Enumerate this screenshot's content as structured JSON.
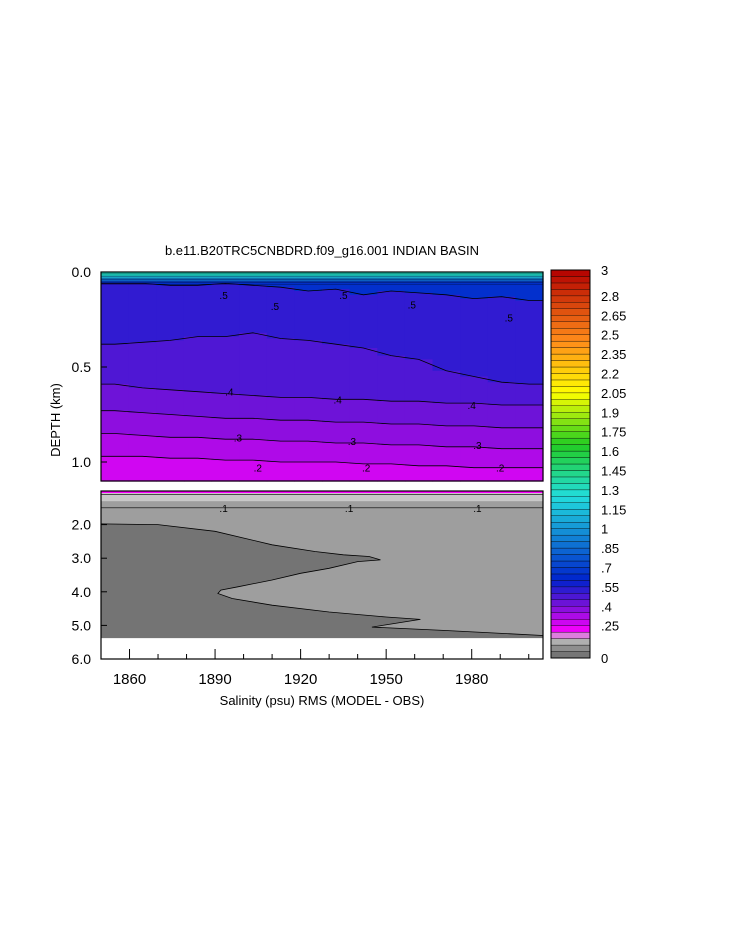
{
  "title": "b.e11.B20TRC5CNBDRD.f09_g16.001 INDIAN BASIN",
  "chart_data": {
    "type": "heatmap",
    "title": "b.e11.B20TRC5CNBDRD.f09_g16.001 INDIAN BASIN",
    "xlabel": "Salinity (psu) RMS (MODEL - OBS)",
    "ylabel": "DEPTH (km)",
    "xlim": [
      1850,
      2005
    ],
    "x_ticks": [
      1860,
      1890,
      1920,
      1950,
      1980
    ],
    "x_tick_labels": [
      "1860",
      "1890",
      "1920",
      "1950",
      "1980"
    ],
    "upper_panel": {
      "ylim": [
        0.0,
        1.1
      ],
      "y_ticks": [
        0.0,
        0.5,
        1.0
      ],
      "y_tick_labels": [
        "0.0",
        "0.5",
        "1.0"
      ]
    },
    "lower_panel": {
      "ylim": [
        1.0,
        6.0
      ],
      "y_ticks": [
        2.0,
        3.0,
        4.0,
        5.0,
        6.0
      ],
      "y_tick_labels": [
        "2.0",
        "3.0",
        "4.0",
        "5.0",
        "6.0"
      ]
    },
    "colorbar": {
      "min": 0,
      "max": 3,
      "step": 0.05,
      "tick_values": [
        3,
        2.8,
        2.65,
        2.5,
        2.35,
        2.2,
        2.05,
        1.9,
        1.75,
        1.6,
        1.45,
        1.3,
        1.15,
        1,
        0.85,
        0.7,
        0.55,
        0.4,
        0.25,
        0
      ],
      "tick_labels": [
        "3",
        "2.8",
        "2.65",
        "2.5",
        "2.35",
        "2.2",
        "2.05",
        "1.9",
        "1.75",
        "1.6",
        "1.45",
        "1.3",
        "1.15",
        "1",
        ".85",
        ".7",
        ".55",
        ".4",
        ".25",
        "0"
      ],
      "colors": {
        "high": "#b30000",
        "orange": "#ff8c1a",
        "yellow": "#ffff00",
        "green": "#22cc22",
        "cyan": "#22dddd",
        "blue": "#0022cc",
        "purple": "#7a11d9",
        "magenta": "#ff00ff",
        "light_gray": "#c8c8c8",
        "gray": "#909090",
        "dark_gray": "#6a6a6a"
      }
    },
    "contour_labels": [
      {
        "text": ".5",
        "x": 1893,
        "depth": 0.12
      },
      {
        "text": ".5",
        "x": 1911,
        "depth": 0.18
      },
      {
        "text": ".5",
        "x": 1935,
        "depth": 0.12
      },
      {
        "text": ".5",
        "x": 1959,
        "depth": 0.17
      },
      {
        "text": ".5",
        "x": 1993,
        "depth": 0.24
      },
      {
        "text": ".4",
        "x": 1895,
        "depth": 0.63
      },
      {
        "text": ".4",
        "x": 1933,
        "depth": 0.67
      },
      {
        "text": ".4",
        "x": 1980,
        "depth": 0.7
      },
      {
        "text": ".3",
        "x": 1898,
        "depth": 0.87
      },
      {
        "text": ".3",
        "x": 1938,
        "depth": 0.89
      },
      {
        "text": ".3",
        "x": 1982,
        "depth": 0.91
      },
      {
        "text": ".2",
        "x": 1905,
        "depth": 1.03
      },
      {
        "text": ".2",
        "x": 1943,
        "depth": 1.03
      },
      {
        "text": ".2",
        "x": 1990,
        "depth": 1.03
      },
      {
        "text": ".1",
        "x": 1893,
        "depth": 1.5
      },
      {
        "text": ".1",
        "x": 1937,
        "depth": 1.5
      },
      {
        "text": ".1",
        "x": 1982,
        "depth": 1.5
      }
    ],
    "upper_contours": [
      {
        "level": 0.5,
        "depth": [
          0.06,
          0.06,
          0.07,
          0.07,
          0.06,
          0.07,
          0.08,
          0.1,
          0.09,
          0.12,
          0.1,
          0.11,
          0.12,
          0.14,
          0.13,
          0.15
        ]
      },
      {
        "level": 0.45,
        "depth": [
          0.38,
          0.37,
          0.36,
          0.34,
          0.34,
          0.32,
          0.35,
          0.36,
          0.38,
          0.4,
          0.44,
          0.46,
          0.52,
          0.55,
          0.58,
          0.59
        ]
      },
      {
        "level": 0.4,
        "depth": [
          0.59,
          0.61,
          0.62,
          0.63,
          0.64,
          0.65,
          0.66,
          0.66,
          0.67,
          0.67,
          0.68,
          0.68,
          0.69,
          0.69,
          0.7,
          0.7
        ]
      },
      {
        "level": 0.35,
        "depth": [
          0.73,
          0.74,
          0.75,
          0.76,
          0.77,
          0.77,
          0.78,
          0.78,
          0.79,
          0.79,
          0.8,
          0.8,
          0.81,
          0.81,
          0.82,
          0.82
        ]
      },
      {
        "level": 0.3,
        "depth": [
          0.85,
          0.86,
          0.87,
          0.87,
          0.88,
          0.88,
          0.89,
          0.89,
          0.9,
          0.9,
          0.91,
          0.91,
          0.92,
          0.92,
          0.93,
          0.93
        ]
      },
      {
        "level": 0.25,
        "depth": [
          0.97,
          0.97,
          0.98,
          0.98,
          0.99,
          0.99,
          1.0,
          1.0,
          1.0,
          1.01,
          1.01,
          1.02,
          1.02,
          1.03,
          1.03,
          1.03
        ]
      }
    ],
    "lower_boundary_0_05": {
      "points": [
        [
          1850,
          1.98
        ],
        [
          1870,
          2.0
        ],
        [
          1890,
          2.2
        ],
        [
          1910,
          2.6
        ],
        [
          1925,
          2.8
        ],
        [
          1935,
          2.9
        ],
        [
          1944,
          2.95
        ],
        [
          1948,
          3.05
        ],
        [
          1940,
          3.1
        ],
        [
          1930,
          3.3
        ],
        [
          1920,
          3.45
        ],
        [
          1910,
          3.65
        ],
        [
          1898,
          3.85
        ],
        [
          1892,
          3.95
        ],
        [
          1891,
          4.05
        ],
        [
          1896,
          4.2
        ],
        [
          1910,
          4.4
        ],
        [
          1930,
          4.6
        ],
        [
          1950,
          4.75
        ],
        [
          1962,
          4.82
        ],
        [
          1945,
          5.05
        ],
        [
          1970,
          5.15
        ],
        [
          2005,
          5.3
        ]
      ]
    }
  }
}
